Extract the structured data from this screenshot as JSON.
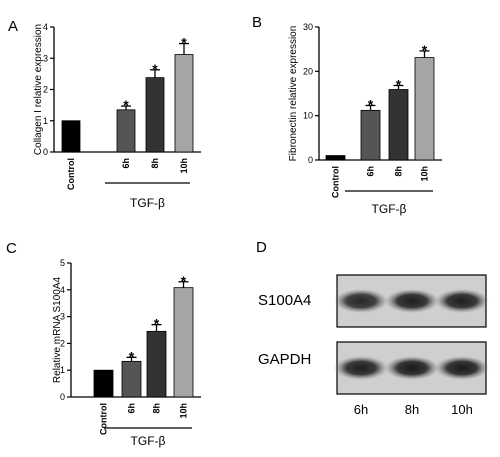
{
  "panels": {
    "a": {
      "label": "A"
    },
    "b": {
      "label": "B"
    },
    "c": {
      "label": "C"
    },
    "d": {
      "label": "D"
    }
  },
  "chart_data": [
    {
      "type": "bar",
      "panel": "A",
      "ylabel": "Collagen I relative expression",
      "group_label": "TGF-β",
      "categories": [
        "Control",
        "6h",
        "8h",
        "10h"
      ],
      "values": [
        1.0,
        1.35,
        2.38,
        3.12
      ],
      "errors": [
        0.0,
        0.12,
        0.25,
        0.35
      ],
      "significant": [
        false,
        true,
        true,
        true
      ],
      "star": "*",
      "ylim": [
        0,
        4
      ],
      "yticks": [
        0,
        1,
        2,
        3,
        4
      ],
      "colors": [
        "#000000",
        "#555555",
        "#333333",
        "#a5a5a5"
      ]
    },
    {
      "type": "bar",
      "panel": "B",
      "ylabel": "Fibronectin relative expression",
      "group_label": "TGF-β",
      "categories": [
        "Control",
        "6h",
        "8h",
        "10h"
      ],
      "values": [
        1.0,
        11.2,
        15.9,
        23.1
      ],
      "errors": [
        0.0,
        1.1,
        0.9,
        1.5
      ],
      "significant": [
        false,
        true,
        true,
        true
      ],
      "star": "*",
      "ylim": [
        0,
        30
      ],
      "yticks": [
        0,
        10,
        20,
        30
      ],
      "colors": [
        "#000000",
        "#555555",
        "#333333",
        "#a5a5a5"
      ]
    },
    {
      "type": "bar",
      "panel": "C",
      "ylabel": "Relative mRNA S100A4",
      "group_label": "TGF-β",
      "categories": [
        "Control",
        "6h",
        "8h",
        "10h"
      ],
      "values": [
        1.0,
        1.33,
        2.45,
        4.08
      ],
      "errors": [
        0.0,
        0.15,
        0.25,
        0.22
      ],
      "significant": [
        false,
        true,
        true,
        true
      ],
      "star": "*",
      "ylim": [
        0,
        5
      ],
      "yticks": [
        0,
        1,
        2,
        3,
        4,
        5
      ],
      "colors": [
        "#000000",
        "#555555",
        "#333333",
        "#a5a5a5"
      ]
    }
  ],
  "blot": {
    "rows": [
      {
        "label": "S100A4",
        "intensity": [
          0.85,
          0.9,
          0.9
        ]
      },
      {
        "label": "GAPDH",
        "intensity": [
          0.9,
          0.92,
          0.92
        ]
      }
    ],
    "lanes": [
      "6h",
      "8h",
      "10h"
    ]
  }
}
